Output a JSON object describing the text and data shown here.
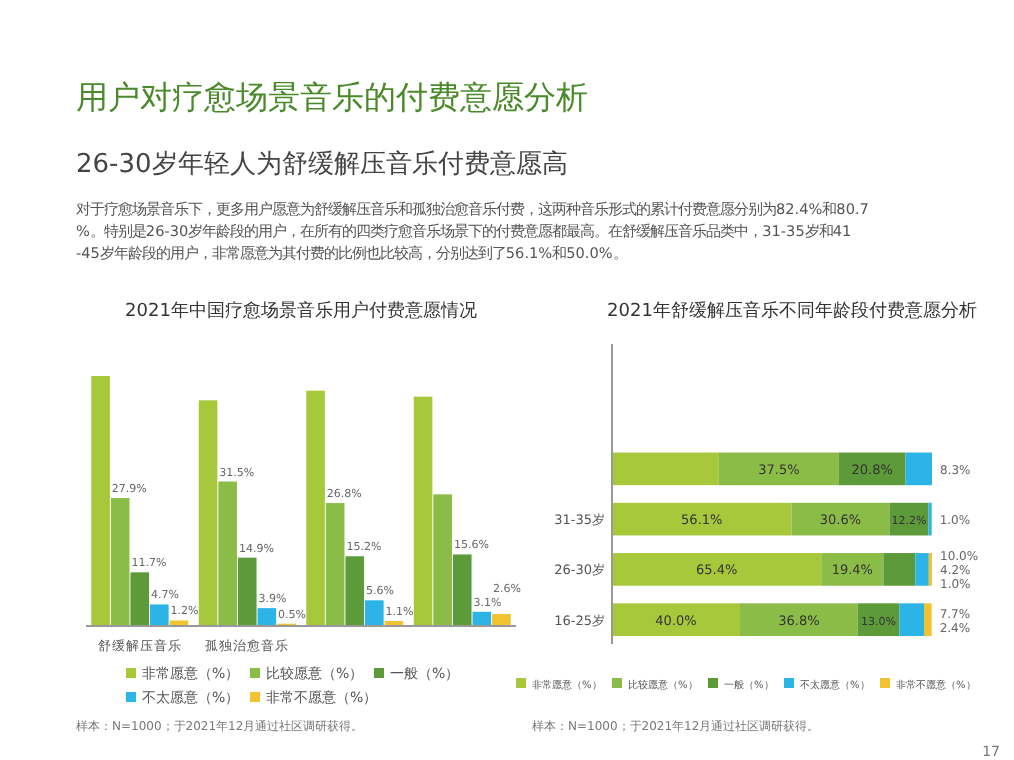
{
  "chart_data": [
    {
      "type": "other",
      "title": "用户对疗愈场景音乐的付费意愿分析",
      "subtitle": "26-30岁年轻人为舒缓解压音乐付费意愿高",
      "annotations": [
        "对于疗愈场景音乐下，更多用户愿意为舒缓解压音乐和孤独治愈音乐付费，这两种音乐形式的累计付费意愿分别为82.4%和80.7%。特别是26-30岁年龄段的用户，在所有的四类疗愈音乐场景下的付费意愿都最高。在舒缓解压音乐品类中，31-35岁和41-45岁年龄段的用户，非常愿意为其付费的比例也比较高，分别达到了56.1%和50.0%。",
        "17"
      ]
    },
    {
      "type": "bar",
      "title": "2021年中国疗愈场景音乐用户付费意愿情况",
      "categories": [
        "舒缓解压音乐",
        "孤独治愈音乐",
        null,
        null
      ],
      "legend": "bottom",
      "annotations": [
        "样本：N=1000；于2021年12月通过社区调研获得。"
      ],
      "series": [
        {
          "name": "非常愿意（%）",
          "color": "#a8c83c",
          "values": [
            54.5,
            49.2,
            51.3,
            50.0
          ],
          "value_labels": [
            null,
            null,
            null,
            null
          ]
        },
        {
          "name": "比较愿意（%）",
          "color": "#8cbc48",
          "values": [
            27.9,
            31.5,
            26.8,
            28.7
          ],
          "value_labels": [
            "27.9%",
            "31.5%",
            "26.8%",
            null
          ]
        },
        {
          "name": "一般（%）",
          "color": "#5c9a3a",
          "values": [
            11.7,
            14.9,
            15.2,
            15.6
          ],
          "value_labels": [
            "11.7%",
            "14.9%",
            "15.2%",
            "15.6%"
          ]
        },
        {
          "name": "不太愿意（%）",
          "color": "#2cb4e6",
          "values": [
            4.7,
            3.9,
            5.6,
            3.1
          ],
          "value_labels": [
            "4.7%",
            "3.9%",
            "5.6%",
            "3.1%"
          ]
        },
        {
          "name": "非常不愿意（%）",
          "color": "#f2c230",
          "values": [
            1.2,
            0.5,
            1.1,
            2.6
          ],
          "value_labels": [
            "1.2%",
            "0.5%",
            "1.1%",
            "2.6%"
          ]
        }
      ]
    },
    {
      "type": "bar",
      "orientation": "horizontal",
      "stacked": true,
      "title": "2021年舒缓解压音乐不同年龄段付费意愿分析",
      "categories": [
        null,
        null,
        null,
        "31-35岁",
        "26-30岁",
        "16-25岁"
      ],
      "legend": "bottom",
      "annotations": [
        "样本：N=1000；于2021年12月通过社区调研获得。"
      ],
      "series": [
        {
          "name": "非常愿意（%）",
          "color": "#a8c83c",
          "values": [
            null,
            null,
            33.4,
            56.1,
            65.4,
            40.0
          ],
          "value_labels": [
            null,
            null,
            null,
            "56.1%",
            "65.4%",
            "40.0%"
          ]
        },
        {
          "name": "比较愿意（%）",
          "color": "#8cbc48",
          "values": [
            null,
            null,
            37.5,
            30.6,
            19.4,
            36.8
          ],
          "value_labels": [
            null,
            null,
            "37.5%",
            "30.6%",
            "19.4%",
            "36.8%"
          ]
        },
        {
          "name": "一般（%）",
          "color": "#5c9a3a",
          "values": [
            null,
            null,
            20.8,
            12.2,
            10.0,
            13.0
          ],
          "value_labels": [
            null,
            null,
            "20.8%",
            "12.2%",
            "10.0%",
            "13.0%"
          ]
        },
        {
          "name": "不太愿意（%）",
          "color": "#2cb4e6",
          "values": [
            null,
            null,
            8.3,
            1.0,
            4.2,
            7.7
          ],
          "value_labels": [
            null,
            null,
            "8.3%",
            "1.0%",
            "4.2%",
            "7.7%"
          ]
        },
        {
          "name": "非常不愿意（%）",
          "color": "#f2c230",
          "values": [
            null,
            null,
            null,
            null,
            1.0,
            2.4
          ],
          "value_labels": [
            null,
            null,
            null,
            null,
            "1.0%",
            "2.4%"
          ]
        }
      ]
    }
  ]
}
